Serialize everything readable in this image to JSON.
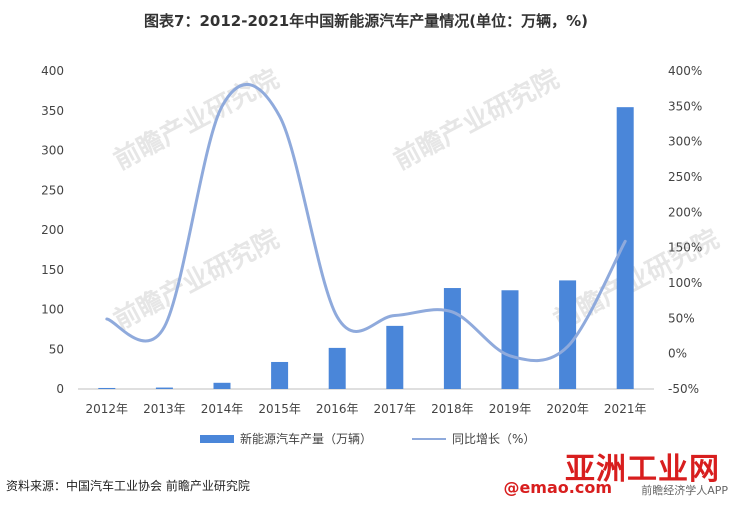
{
  "title": "图表7：2012-2021年中国新能源汽车产量情况(单位：万辆，%)",
  "chart_data": {
    "type": "bar",
    "categories": [
      "2012年",
      "2013年",
      "2014年",
      "2015年",
      "2016年",
      "2017年",
      "2018年",
      "2019年",
      "2020年",
      "2021年"
    ],
    "series": [
      {
        "name": "新能源汽车产量（万辆）",
        "type": "bar",
        "axis": "left",
        "color": "#4A86D9",
        "values": [
          1.3,
          1.8,
          7.8,
          34.0,
          51.7,
          79.4,
          127.0,
          124.2,
          136.6,
          354.5
        ]
      },
      {
        "name": "同比增长（%）",
        "type": "line",
        "axis": "right",
        "color": "#8FAADC",
        "values": [
          49.0,
          38.0,
          350.0,
          336.0,
          52.0,
          54.0,
          59.0,
          -3.0,
          10.0,
          159.0
        ]
      }
    ],
    "left_axis": {
      "min": 0,
      "max": 400,
      "ticks": [
        "0",
        "50",
        "100",
        "150",
        "200",
        "250",
        "300",
        "350",
        "400"
      ]
    },
    "right_axis": {
      "min": -50,
      "max": 400,
      "ticks": [
        "-50%",
        "0%",
        "50%",
        "100%",
        "150%",
        "200%",
        "250%",
        "300%",
        "350%",
        "400%"
      ]
    },
    "grid": false,
    "legend_position": "bottom"
  },
  "source": "资料来源：中国汽车工业协会 前瞻产业研究院",
  "watermarks": {
    "site_logo": "亚洲工业网",
    "site_url": "@emao.com",
    "app_label": "前瞻经济学人APP",
    "chart_watermark": "前瞻产业研究院"
  }
}
